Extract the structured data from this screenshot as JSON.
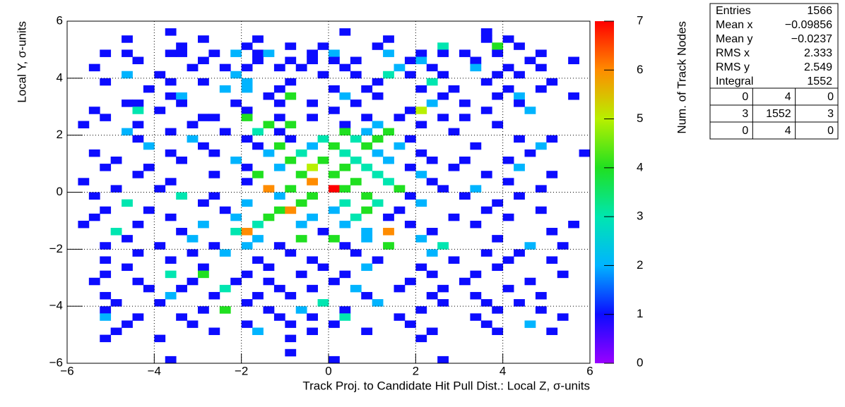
{
  "chart_data": {
    "type": "heatmap",
    "x_label": "Track Proj. to Candidate Hit Pull Dist.: Local Z, σ-units",
    "y_label": "Local Y, σ-units",
    "z_label": "Num. of Track Nodes",
    "xlim": [
      -6,
      6
    ],
    "ylim": [
      -6,
      6
    ],
    "zlim": [
      0,
      7
    ],
    "xticks": [
      {
        "value": -6,
        "label": "−6"
      },
      {
        "value": -4,
        "label": "−4"
      },
      {
        "value": -2,
        "label": "−2"
      },
      0,
      2,
      4,
      6
    ],
    "yticks": [
      {
        "value": -6,
        "label": "−6"
      },
      {
        "value": -4,
        "label": "−4"
      },
      {
        "value": -2,
        "label": "−2"
      },
      0,
      2,
      4,
      6
    ],
    "zticks": [
      0,
      1,
      2,
      3,
      4,
      5,
      6,
      7
    ],
    "grid": true,
    "palette": [
      "#9a00ff",
      "#0c0cff",
      "#00b4ff",
      "#00e6b0",
      "#20e020",
      "#b8f000",
      "#ff8c00",
      "#ff0000"
    ],
    "x": [
      -3.625,
      0.375,
      3.625,
      -4.625,
      -2.875,
      -1.625,
      1.375,
      3.625,
      4.125,
      -3.375,
      -1.875,
      -0.875,
      -0.125,
      1.125,
      2.625,
      3.875,
      4.375,
      -5.125,
      -4.625,
      -3.625,
      -3.375,
      -2.625,
      -2.125,
      -1.625,
      -1.375,
      -0.375,
      0.125,
      1.375,
      2.125,
      2.625,
      3.125,
      3.875,
      4.875,
      -4.375,
      -2.875,
      -1.625,
      -0.875,
      -0.375,
      0.125,
      0.625,
      1.875,
      2.125,
      3.375,
      4.625,
      5.625,
      -5.375,
      -3.125,
      -2.375,
      -1.875,
      -1.125,
      -0.625,
      0.375,
      1.625,
      2.375,
      3.375,
      4.125,
      4.875,
      -4.625,
      -3.875,
      -2.125,
      -0.125,
      0.625,
      1.375,
      1.875,
      2.625,
      3.875,
      4.375,
      -5.125,
      -3.625,
      -2.875,
      -1.875,
      -0.875,
      1.125,
      2.375,
      3.625,
      5.125,
      -4.125,
      -2.375,
      -1.875,
      -1.125,
      0.125,
      0.875,
      2.125,
      2.875,
      4.125,
      4.875,
      -3.625,
      -3.375,
      -1.375,
      -0.875,
      0.375,
      1.125,
      2.625,
      3.875,
      4.375,
      5.625,
      -4.625,
      -4.375,
      -3.375,
      -2.125,
      -1.125,
      -0.375,
      0.625,
      2.375,
      3.125,
      4.375,
      -5.375,
      -4.375,
      -3.875,
      -1.875,
      0.125,
      1.875,
      2.125,
      3.625,
      4.625,
      -5.125,
      -2.875,
      -2.625,
      -1.875,
      -1.125,
      -0.375,
      0.875,
      1.625,
      2.625,
      3.125,
      -5.625,
      -4.375,
      -3.125,
      -1.375,
      -0.875,
      0.375,
      1.125,
      2.125,
      3.875,
      -4.625,
      -3.625,
      -2.375,
      -1.625,
      -1.125,
      0.375,
      0.875,
      1.375,
      2.875,
      -4.375,
      -3.125,
      -1.875,
      -0.875,
      -0.125,
      0.625,
      1.125,
      1.875,
      4.375,
      5.125,
      -4.125,
      -2.875,
      -1.625,
      -1.125,
      -0.375,
      0.125,
      0.875,
      1.625,
      3.375,
      4.875,
      -5.375,
      -3.625,
      -2.625,
      -1.375,
      -0.625,
      0.375,
      1.125,
      2.125,
      4.625,
      5.875,
      -4.875,
      -3.375,
      -2.125,
      -0.875,
      -0.125,
      0.625,
      1.375,
      2.375,
      3.125,
      4.125,
      -5.125,
      -4.125,
      -1.875,
      -1.125,
      -0.375,
      0.375,
      0.875,
      1.875,
      2.875,
      4.375,
      -4.375,
      -2.625,
      -1.625,
      -0.625,
      0.125,
      1.125,
      2.125,
      3.625,
      5.125,
      -5.625,
      -3.625,
      -1.875,
      -0.375,
      0.625,
      1.375,
      2.375,
      4.125,
      -4.875,
      -3.875,
      -1.375,
      -0.875,
      0.125,
      0.375,
      1.625,
      2.625,
      3.375,
      4.875,
      -5.375,
      -3.375,
      -2.625,
      -1.125,
      -0.375,
      0.875,
      1.875,
      3.125,
      4.375,
      -4.625,
      -2.875,
      -1.875,
      -0.625,
      0.375,
      1.125,
      2.125,
      3.875,
      -5.125,
      -4.125,
      -2.375,
      -1.125,
      -0.875,
      0.125,
      0.875,
      1.625,
      3.625,
      4.875,
      -5.375,
      -3.625,
      -2.125,
      -1.375,
      -0.375,
      0.625,
      1.375,
      2.875,
      4.125,
      -5.625,
      -4.375,
      -2.875,
      -1.625,
      -0.625,
      0.375,
      1.875,
      3.375,
      5.625,
      -4.875,
      -3.375,
      -2.125,
      -1.875,
      -0.125,
      0.875,
      1.375,
      2.375,
      5.125,
      -4.625,
      -3.125,
      -1.625,
      -0.625,
      0.125,
      0.875,
      2.125,
      3.875,
      -5.125,
      -3.875,
      -2.625,
      -1.875,
      -1.125,
      0.375,
      1.375,
      2.625,
      4.625,
      5.375,
      -4.375,
      -3.125,
      -2.375,
      -0.875,
      0.625,
      2.375,
      3.625,
      4.375,
      -5.125,
      -3.625,
      -1.625,
      -0.375,
      1.125,
      2.875,
      4.125,
      5.125,
      -4.625,
      -2.875,
      -1.375,
      -0.125,
      0.875,
      2.125,
      3.875,
      -5.125,
      -3.625,
      -2.875,
      -1.875,
      -0.625,
      0.375,
      2.375,
      3.375,
      5.375,
      -5.375,
      -4.375,
      -3.125,
      -2.125,
      -1.375,
      0.125,
      1.875,
      3.125,
      4.625,
      -4.125,
      -3.375,
      -2.375,
      -1.125,
      -0.375,
      0.625,
      1.625,
      2.625,
      4.125,
      -5.125,
      -3.625,
      -2.625,
      -1.625,
      -0.875,
      0.875,
      2.375,
      3.375,
      4.875,
      -4.875,
      -3.875,
      -1.875,
      -0.125,
      1.125,
      2.625,
      3.625,
      4.375,
      -5.125,
      -2.875,
      -2.375,
      -1.375,
      -0.625,
      0.375,
      2.125,
      3.875,
      4.875,
      -5.125,
      -4.375,
      -3.375,
      -1.125,
      -0.375,
      0.375,
      1.625,
      3.375,
      5.375,
      -4.625,
      -3.125,
      -1.875,
      -0.875,
      0.125,
      1.875,
      3.625,
      4.625,
      -4.875,
      -2.625,
      -1.625,
      -0.375,
      0.875,
      2.375,
      3.875,
      5.125,
      -5.125,
      -3.875,
      -0.875,
      2.125,
      -0.875,
      -3.625,
      0.125,
      2.625
    ],
    "y": [
      5.625,
      5.625,
      5.625,
      5.375,
      5.375,
      5.375,
      5.375,
      5.375,
      5.375,
      5.125,
      5.125,
      5.125,
      5.125,
      5.125,
      5.125,
      5.125,
      5.125,
      4.875,
      4.875,
      4.875,
      4.875,
      4.875,
      4.875,
      4.875,
      4.875,
      4.875,
      4.875,
      4.875,
      4.875,
      4.875,
      4.875,
      4.875,
      4.875,
      4.625,
      4.625,
      4.625,
      4.625,
      4.625,
      4.625,
      4.625,
      4.625,
      4.625,
      4.625,
      4.625,
      4.625,
      4.375,
      4.375,
      4.375,
      4.375,
      4.375,
      4.375,
      4.375,
      4.375,
      4.375,
      4.375,
      4.375,
      4.375,
      4.125,
      4.125,
      4.125,
      4.125,
      4.125,
      4.125,
      4.125,
      4.125,
      4.125,
      4.125,
      3.875,
      3.875,
      3.875,
      3.875,
      3.875,
      3.875,
      3.875,
      3.875,
      3.875,
      3.625,
      3.625,
      3.625,
      3.625,
      3.625,
      3.625,
      3.625,
      3.625,
      3.625,
      3.625,
      3.375,
      3.375,
      3.375,
      3.375,
      3.375,
      3.375,
      3.375,
      3.375,
      3.375,
      3.375,
      3.125,
      3.125,
      3.125,
      3.125,
      3.125,
      3.125,
      3.125,
      3.125,
      3.125,
      3.125,
      2.875,
      2.875,
      2.875,
      2.875,
      2.875,
      2.875,
      2.875,
      2.875,
      2.875,
      2.625,
      2.625,
      2.625,
      2.625,
      2.625,
      2.625,
      2.625,
      2.625,
      2.625,
      2.625,
      2.375,
      2.375,
      2.375,
      2.375,
      2.375,
      2.375,
      2.375,
      2.375,
      2.375,
      2.125,
      2.125,
      2.125,
      2.125,
      2.125,
      2.125,
      2.125,
      2.125,
      2.125,
      1.875,
      1.875,
      1.875,
      1.875,
      1.875,
      1.875,
      1.875,
      1.875,
      1.875,
      1.875,
      1.625,
      1.625,
      1.625,
      1.625,
      1.625,
      1.625,
      1.625,
      1.625,
      1.625,
      1.625,
      1.375,
      1.375,
      1.375,
      1.375,
      1.375,
      1.375,
      1.375,
      1.375,
      1.375,
      1.375,
      1.125,
      1.125,
      1.125,
      1.125,
      1.125,
      1.125,
      1.125,
      1.125,
      1.125,
      1.125,
      0.875,
      0.875,
      0.875,
      0.875,
      0.875,
      0.875,
      0.875,
      0.875,
      0.875,
      0.875,
      0.625,
      0.625,
      0.625,
      0.625,
      0.625,
      0.625,
      0.625,
      0.625,
      0.625,
      0.375,
      0.375,
      0.375,
      0.375,
      0.375,
      0.375,
      0.375,
      0.375,
      0.125,
      0.125,
      0.125,
      0.125,
      0.125,
      0.125,
      0.125,
      0.125,
      0.125,
      0.125,
      -0.125,
      -0.125,
      -0.125,
      -0.125,
      -0.125,
      -0.125,
      -0.125,
      -0.125,
      -0.125,
      -0.375,
      -0.375,
      -0.375,
      -0.375,
      -0.375,
      -0.375,
      -0.375,
      -0.375,
      -0.625,
      -0.625,
      -0.625,
      -0.625,
      -0.625,
      -0.625,
      -0.625,
      -0.625,
      -0.625,
      -0.625,
      -0.875,
      -0.875,
      -0.875,
      -0.875,
      -0.875,
      -0.875,
      -0.875,
      -0.875,
      -0.875,
      -1.125,
      -1.125,
      -1.125,
      -1.125,
      -1.125,
      -1.125,
      -1.125,
      -1.125,
      -1.125,
      -1.375,
      -1.375,
      -1.375,
      -1.375,
      -1.375,
      -1.375,
      -1.375,
      -1.375,
      -1.375,
      -1.625,
      -1.625,
      -1.625,
      -1.625,
      -1.625,
      -1.625,
      -1.625,
      -1.625,
      -1.875,
      -1.875,
      -1.875,
      -1.875,
      -1.875,
      -1.875,
      -1.875,
      -1.875,
      -1.875,
      -1.875,
      -2.125,
      -2.125,
      -2.125,
      -2.125,
      -2.125,
      -2.125,
      -2.125,
      -2.125,
      -2.375,
      -2.375,
      -2.375,
      -2.375,
      -2.375,
      -2.375,
      -2.375,
      -2.375,
      -2.625,
      -2.625,
      -2.625,
      -2.625,
      -2.625,
      -2.625,
      -2.625,
      -2.875,
      -2.875,
      -2.875,
      -2.875,
      -2.875,
      -2.875,
      -2.875,
      -2.875,
      -2.875,
      -3.125,
      -3.125,
      -3.125,
      -3.125,
      -3.125,
      -3.125,
      -3.125,
      -3.125,
      -3.125,
      -3.375,
      -3.375,
      -3.375,
      -3.375,
      -3.375,
      -3.375,
      -3.375,
      -3.375,
      -3.375,
      -3.625,
      -3.625,
      -3.625,
      -3.625,
      -3.625,
      -3.625,
      -3.625,
      -3.625,
      -3.625,
      -3.875,
      -3.875,
      -3.875,
      -3.875,
      -3.875,
      -3.875,
      -3.875,
      -3.875,
      -4.125,
      -4.125,
      -4.125,
      -4.125,
      -4.125,
      -4.125,
      -4.125,
      -4.125,
      -4.125,
      -4.375,
      -4.375,
      -4.375,
      -4.375,
      -4.375,
      -4.375,
      -4.375,
      -4.375,
      -4.375,
      -4.625,
      -4.625,
      -4.625,
      -4.625,
      -4.625,
      -4.625,
      -4.625,
      -4.625,
      -4.875,
      -4.875,
      -4.875,
      -4.875,
      -4.875,
      -4.875,
      -4.875,
      -4.875,
      -5.125,
      -5.125,
      -5.125,
      -5.125,
      -5.625,
      -5.875,
      -5.875,
      -5.875
    ],
    "values": [
      1,
      1,
      1,
      1,
      1,
      1,
      1,
      1,
      1,
      1,
      1,
      1,
      1,
      1,
      3,
      4,
      1,
      1,
      1,
      1,
      1,
      1,
      2,
      1,
      2,
      1,
      2,
      2,
      1,
      1,
      1,
      1,
      1,
      1,
      1,
      1,
      1,
      1,
      1,
      1,
      1,
      2,
      1,
      1,
      1,
      1,
      1,
      1,
      1,
      1,
      1,
      1,
      2,
      1,
      2,
      1,
      1,
      2,
      1,
      2,
      1,
      1,
      3,
      1,
      1,
      1,
      1,
      1,
      1,
      1,
      2,
      1,
      1,
      3,
      1,
      1,
      1,
      2,
      2,
      1,
      1,
      1,
      1,
      1,
      1,
      1,
      1,
      2,
      1,
      4,
      2,
      1,
      1,
      1,
      2,
      1,
      1,
      1,
      1,
      1,
      1,
      1,
      1,
      2,
      1,
      1,
      1,
      3,
      1,
      1,
      1,
      1,
      5,
      1,
      2,
      1,
      1,
      1,
      4,
      1,
      1,
      1,
      1,
      1,
      1,
      1,
      1,
      1,
      4,
      4,
      1,
      2,
      1,
      1,
      2,
      1,
      1,
      3,
      1,
      4,
      2,
      4,
      1,
      1,
      2,
      1,
      1,
      3,
      3,
      4,
      1,
      1,
      1,
      2,
      1,
      1,
      4,
      2,
      4,
      4,
      2,
      1,
      2,
      1,
      1,
      1,
      2,
      3,
      3,
      2,
      1,
      1,
      1,
      1,
      1,
      2,
      4,
      4,
      3,
      2,
      1,
      1,
      1,
      1,
      1,
      1,
      2,
      5,
      4,
      3,
      1,
      1,
      2,
      1,
      1,
      4,
      4,
      4,
      3,
      2,
      1,
      1,
      1,
      1,
      1,
      6,
      4,
      3,
      1,
      1,
      1,
      1,
      6,
      4,
      7,
      4,
      4,
      1,
      2,
      1,
      1,
      3,
      1,
      2,
      4,
      4,
      1,
      1,
      1,
      3,
      1,
      2,
      4,
      3,
      3,
      2,
      1,
      1,
      1,
      1,
      4,
      6,
      2,
      4,
      1,
      1,
      1,
      1,
      1,
      2,
      4,
      2,
      3,
      1,
      1,
      1,
      1,
      1,
      2,
      3,
      2,
      2,
      1,
      1,
      1,
      3,
      1,
      3,
      6,
      1,
      2,
      6,
      1,
      1,
      1,
      2,
      2,
      4,
      4,
      2,
      2,
      1,
      1,
      1,
      1,
      2,
      1,
      1,
      4,
      3,
      2,
      1,
      1,
      1,
      2,
      1,
      1,
      2,
      1,
      1,
      1,
      1,
      1,
      1,
      1,
      1,
      1,
      1,
      1,
      1,
      1,
      1,
      2,
      1,
      1,
      1,
      3,
      4,
      1,
      1,
      1,
      1,
      1,
      1,
      1,
      1,
      1,
      1,
      1,
      1,
      1,
      1,
      1,
      1,
      1,
      3,
      1,
      1,
      2,
      1,
      1,
      1,
      1,
      2,
      1,
      1,
      1,
      1,
      1,
      1,
      1,
      1,
      1,
      1,
      3,
      2,
      1,
      1,
      1,
      1,
      1,
      4,
      1,
      2,
      1,
      1,
      1,
      1,
      2,
      1,
      1,
      1,
      1,
      3,
      1,
      1,
      1,
      1,
      1,
      1,
      1,
      1,
      1,
      1,
      2,
      1,
      1,
      2,
      1,
      1,
      1,
      1,
      1,
      1,
      1,
      1,
      1,
      1,
      1,
      1,
      1
    ],
    "stats": {
      "rows": [
        [
          "Entries",
          "1566"
        ],
        [
          "Mean x",
          "−0.09856"
        ],
        [
          "Mean y",
          "−0.0237"
        ],
        [
          "RMS x",
          "2.333"
        ],
        [
          "RMS y",
          "2.549"
        ],
        [
          "Integral",
          "1552"
        ]
      ],
      "grid": [
        [
          0,
          4,
          0
        ],
        [
          3,
          1552,
          3
        ],
        [
          0,
          4,
          0
        ]
      ]
    }
  }
}
